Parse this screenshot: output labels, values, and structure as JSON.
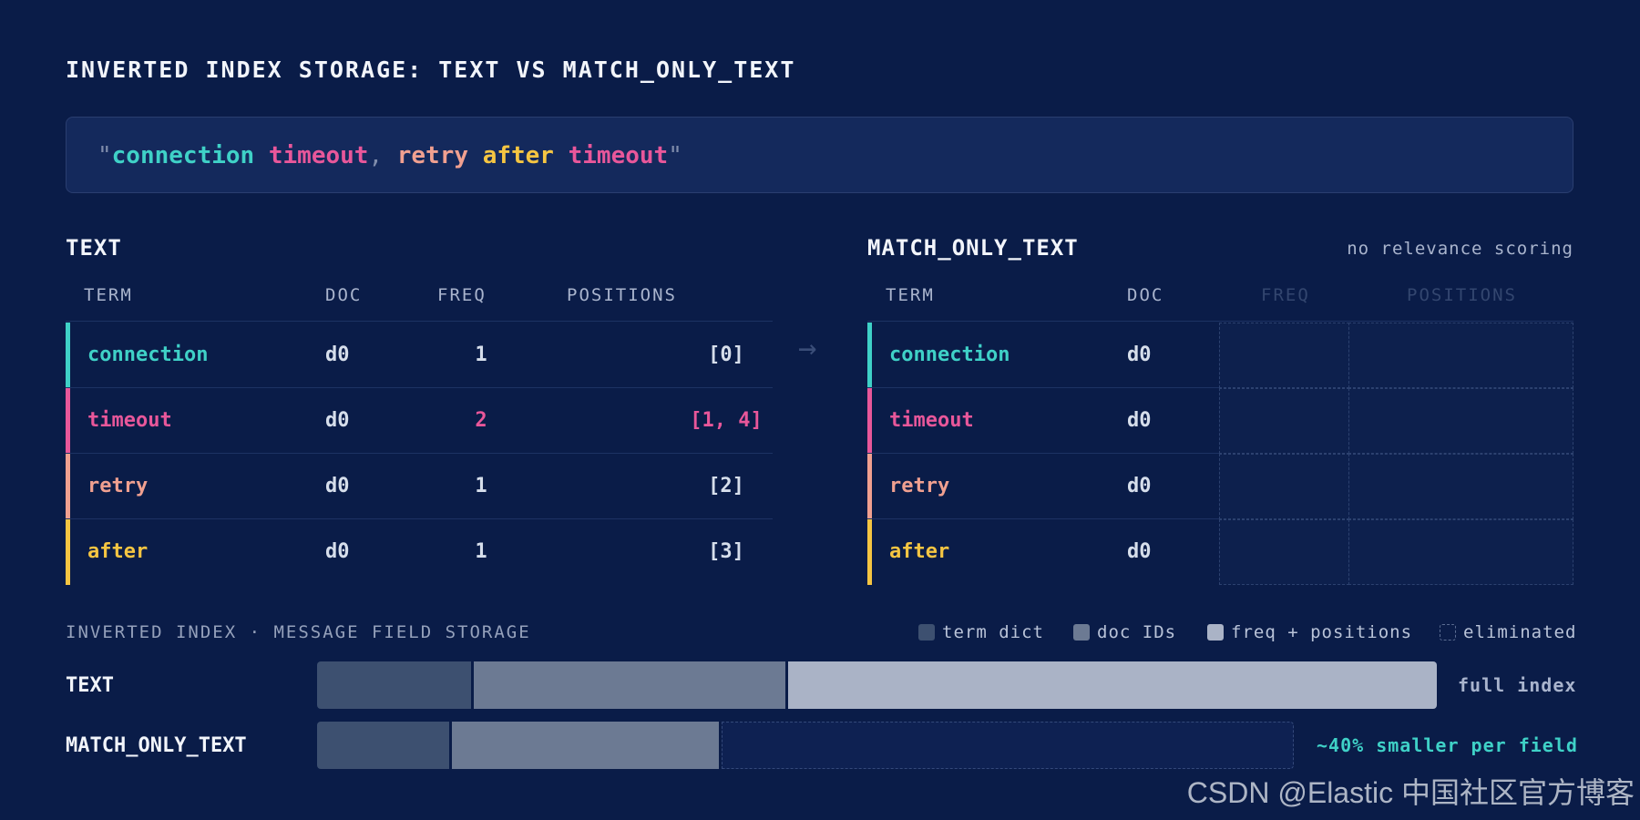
{
  "title": "INVERTED INDEX STORAGE: TEXT VS MATCH_ONLY_TEXT",
  "sample": {
    "quote": "\"",
    "tokens": [
      {
        "text": "connection",
        "color": "#3fd1c7"
      },
      {
        "text": "timeout",
        "color": "#e8579a"
      },
      {
        "text": "retry",
        "color": "#f0a090"
      },
      {
        "text": "after",
        "color": "#f5c542"
      },
      {
        "text": "timeout",
        "color": "#e8579a"
      }
    ],
    "comma": ","
  },
  "text_table": {
    "title": "TEXT",
    "headers": [
      "TERM",
      "DOC",
      "FREQ",
      "POSITIONS"
    ],
    "rows": [
      {
        "term": "connection",
        "doc": "d0",
        "freq": "1",
        "positions": "[0]",
        "color": "#3fd1c7",
        "highlight": false
      },
      {
        "term": "timeout",
        "doc": "d0",
        "freq": "2",
        "positions": "[1, 4]",
        "color": "#e8579a",
        "highlight": true
      },
      {
        "term": "retry",
        "doc": "d0",
        "freq": "1",
        "positions": "[2]",
        "color": "#f0a090",
        "highlight": false
      },
      {
        "term": "after",
        "doc": "d0",
        "freq": "1",
        "positions": "[3]",
        "color": "#f5c542",
        "highlight": false
      }
    ]
  },
  "arrow": "→",
  "mot_table": {
    "title": "MATCH_ONLY_TEXT",
    "note": "no relevance scoring",
    "headers": [
      "TERM",
      "DOC",
      "FREQ",
      "POSITIONS"
    ],
    "rows": [
      {
        "term": "connection",
        "doc": "d0",
        "color": "#3fd1c7"
      },
      {
        "term": "timeout",
        "doc": "d0",
        "color": "#e8579a"
      },
      {
        "term": "retry",
        "doc": "d0",
        "color": "#f0a090"
      },
      {
        "term": "after",
        "doc": "d0",
        "color": "#f5c542"
      }
    ]
  },
  "storage": {
    "title": "INVERTED INDEX · MESSAGE FIELD STORAGE",
    "legend": [
      {
        "label": "term dict",
        "color": "#3d5070",
        "dashed": false
      },
      {
        "label": "doc IDs",
        "color": "#6c7a93",
        "dashed": false
      },
      {
        "label": "freq + positions",
        "color": "#aab3c6",
        "dashed": false
      },
      {
        "label": "eliminated",
        "color": "transparent",
        "dashed": true
      }
    ],
    "bars": [
      {
        "label": "TEXT",
        "note": "full index",
        "note_color": "#a9b4cd",
        "segments": [
          {
            "kind": "term dict",
            "fraction": 0.14
          },
          {
            "kind": "doc IDs",
            "fraction": 0.28
          },
          {
            "kind": "freq + positions",
            "fraction": 0.58
          }
        ]
      },
      {
        "label": "MATCH_ONLY_TEXT",
        "note": "~40% smaller per field",
        "note_color": "#3fd1c7",
        "segments": [
          {
            "kind": "term dict",
            "fraction": 0.12
          },
          {
            "kind": "doc IDs",
            "fraction": 0.24
          },
          {
            "kind": "eliminated",
            "fraction": 0.51
          }
        ]
      }
    ]
  },
  "watermark": "CSDN @Elastic 中国社区官方博客"
}
